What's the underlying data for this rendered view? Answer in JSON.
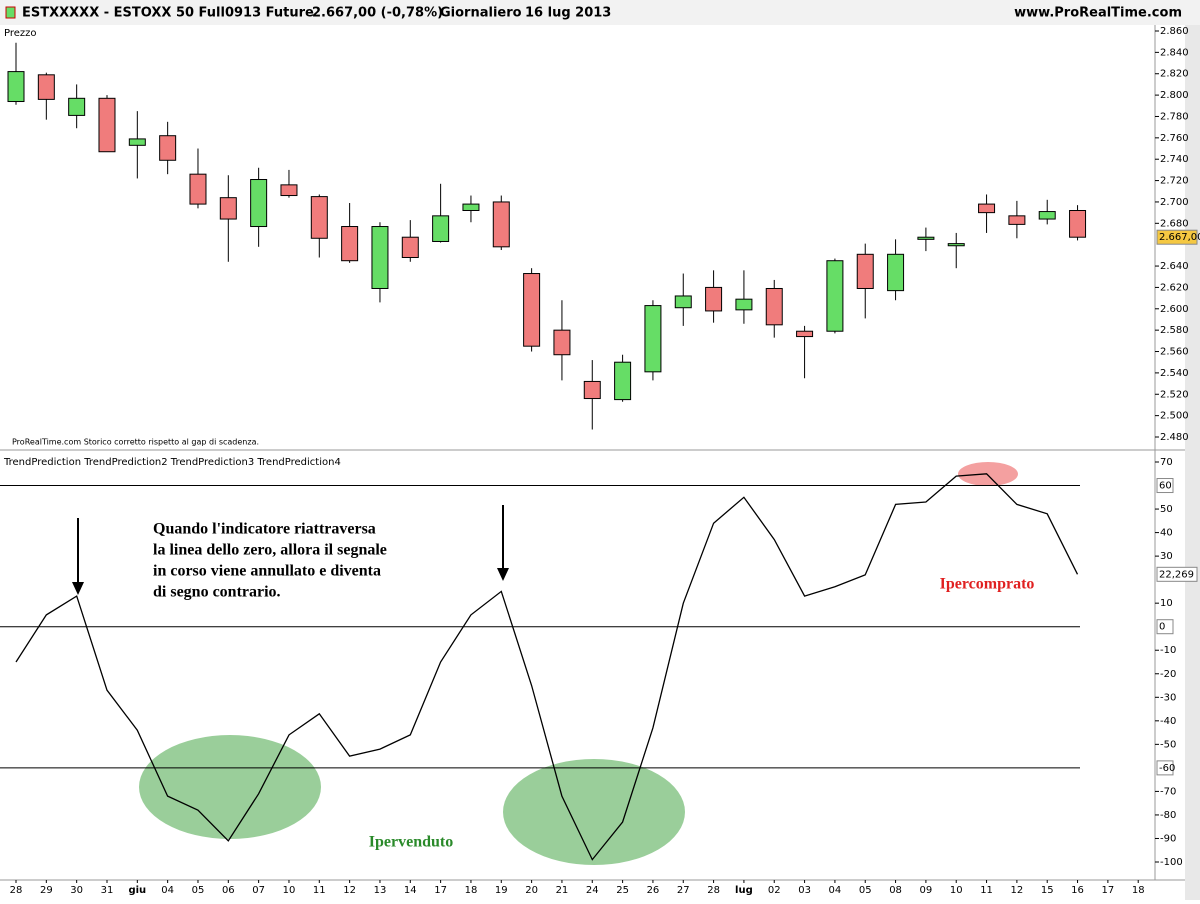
{
  "header": {
    "symbol": "ESTXXXXX - ESTOXX 50 Full0913 Future",
    "price": "2.667,00 (-0,78%)",
    "period": "Giornaliero",
    "date": "16 lug 2013",
    "site": "www.ProRealTime.com"
  },
  "chart_data": [
    {
      "type": "candlestick",
      "title": "Prezzo",
      "note": "ProRealTime.com  Storico corretto rispetto al gap di scadenza.",
      "categories": [
        "28",
        "29",
        "30",
        "31",
        "giu",
        "04",
        "05",
        "06",
        "07",
        "10",
        "11",
        "12",
        "13",
        "14",
        "17",
        "18",
        "19",
        "20",
        "21",
        "24",
        "25",
        "26",
        "27",
        "28",
        "lug",
        "02",
        "03",
        "04",
        "05",
        "08",
        "09",
        "10",
        "11",
        "12",
        "15",
        "16",
        "17",
        "18"
      ],
      "open": [
        2794,
        2819,
        2781,
        2797,
        2753,
        2762,
        2726,
        2704,
        2677,
        2716,
        2705,
        2677,
        2619,
        2667,
        2663,
        2692,
        2700,
        2633,
        2580,
        2532,
        2515,
        2541,
        2601,
        2620,
        2599,
        2619,
        2579,
        2579,
        2651,
        2617,
        2665,
        2659,
        2698,
        2687,
        2684,
        2692,
        null,
        null
      ],
      "high": [
        2849,
        2821,
        2810,
        2800,
        2785,
        2775,
        2750,
        2725,
        2732,
        2730,
        2707,
        2699,
        2681,
        2683,
        2717,
        2706,
        2706,
        2638,
        2608,
        2552,
        2557,
        2608,
        2633,
        2636,
        2636,
        2627,
        2584,
        2647,
        2661,
        2665,
        2676,
        2671,
        2707,
        2701,
        2702,
        2697,
        null,
        null
      ],
      "low": [
        2791,
        2777,
        2769,
        2747,
        2722,
        2726,
        2694,
        2644,
        2658,
        2704,
        2648,
        2643,
        2606,
        2644,
        2662,
        2681,
        2655,
        2560,
        2533,
        2487,
        2513,
        2533,
        2584,
        2587,
        2586,
        2573,
        2535,
        2577,
        2591,
        2608,
        2654,
        2638,
        2671,
        2666,
        2679,
        2664,
        null,
        null
      ],
      "close": [
        2822,
        2796,
        2797,
        2747,
        2759,
        2739,
        2698,
        2684,
        2721,
        2706,
        2666,
        2645,
        2677,
        2648,
        2687,
        2698,
        2658,
        2565,
        2557,
        2516,
        2550,
        2603,
        2612,
        2598,
        2609,
        2585,
        2574,
        2645,
        2619,
        2651,
        2667,
        2661,
        2690,
        2679,
        2691,
        2667,
        null,
        null
      ],
      "up_color": "#66dd66",
      "down_color": "#f07c7c",
      "last": {
        "value": 2667,
        "label": "2.667,00"
      },
      "ylim": [
        2480,
        2860
      ],
      "yticks": [
        {
          "value": 2860,
          "label": "2.860"
        },
        {
          "value": 2840,
          "label": "2.840"
        },
        {
          "value": 2820,
          "label": "2.820"
        },
        {
          "value": 2800,
          "label": "2.800"
        },
        {
          "value": 2780,
          "label": "2.780"
        },
        {
          "value": 2760,
          "label": "2.760"
        },
        {
          "value": 2740,
          "label": "2.740"
        },
        {
          "value": 2720,
          "label": "2.720"
        },
        {
          "value": 2700,
          "label": "2.700"
        },
        {
          "value": 2680,
          "label": "2.680"
        },
        {
          "value": 2640,
          "label": "2.640"
        },
        {
          "value": 2620,
          "label": "2.620"
        },
        {
          "value": 2600,
          "label": "2.600"
        },
        {
          "value": 2580,
          "label": "2.580"
        },
        {
          "value": 2560,
          "label": "2.560"
        },
        {
          "value": 2540,
          "label": "2.540"
        },
        {
          "value": 2520,
          "label": "2.520"
        },
        {
          "value": 2500,
          "label": "2.500"
        },
        {
          "value": 2480,
          "label": "2.480"
        }
      ]
    },
    {
      "type": "line",
      "title": "TrendPrediction TrendPrediction2 TrendPrediction3 TrendPrediction4",
      "color": "#000000",
      "values": [
        -15,
        5,
        13,
        -27,
        -44,
        -72,
        -78,
        -91,
        -71,
        -46,
        -37,
        -55,
        -52,
        -46,
        -15,
        5,
        15,
        -25,
        -72,
        -99,
        -83,
        -43,
        10,
        44,
        55,
        37,
        13,
        17,
        22,
        52,
        53,
        64,
        65,
        52,
        48,
        22.269,
        null,
        null
      ],
      "last": {
        "value": 22.269,
        "label": "22,269"
      },
      "levels": [
        60,
        0,
        -60
      ],
      "ylim": [
        -100,
        70
      ],
      "yticks": [
        70,
        50,
        40,
        30,
        10,
        -10,
        -20,
        -30,
        -40,
        -50,
        -70,
        -80,
        -90,
        -100
      ],
      "annotations": {
        "note": [
          "Quando l'indicatore riattraversa",
          "la linea dello zero, allora il segnale",
          "in corso viene annullato e diventa",
          "di segno contrario."
        ],
        "oversold": "Ipervenduto",
        "overbought": "Ipercomprato"
      }
    }
  ]
}
